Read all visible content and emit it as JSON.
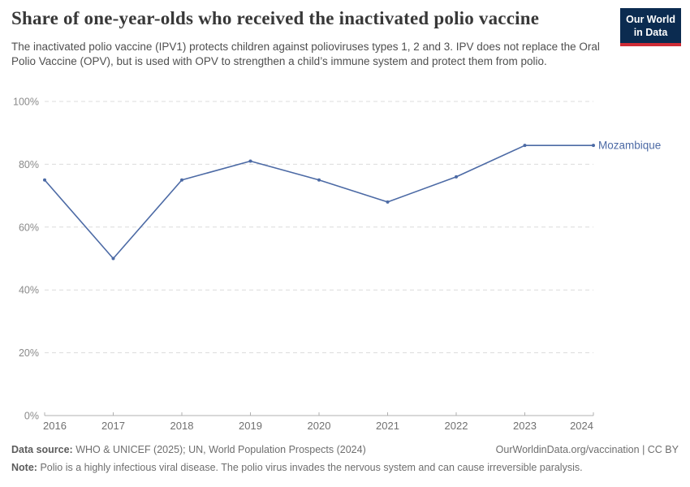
{
  "header": {
    "title": "Share of one-year-olds who received the inactivated polio vaccine",
    "subtitle": "The inactivated polio vaccine (IPV1) protects children against polioviruses types 1, 2 and 3. IPV does not replace the Oral Polio Vaccine (OPV), but is used with OPV to strengthen a child’s immune system and protect them from polio.",
    "logo": {
      "line1": "Our World",
      "line2": "in Data"
    }
  },
  "chart_data": {
    "type": "line",
    "title": "Share of one-year-olds who received the inactivated polio vaccine",
    "x": [
      2016,
      2017,
      2018,
      2019,
      2020,
      2021,
      2022,
      2023,
      2024
    ],
    "series": [
      {
        "name": "Mozambique",
        "values": [
          75,
          50,
          75,
          81,
          75,
          68,
          76,
          86,
          86
        ],
        "color": "#4c6aa5"
      }
    ],
    "ylim": [
      0,
      100
    ],
    "yticks": [
      0,
      20,
      40,
      60,
      80,
      100
    ],
    "ytick_suffix": "%",
    "xlabel": "",
    "ylabel": "",
    "grid": "horizontal-dashed",
    "legend": "end-of-line entity label"
  },
  "colors": {
    "line": "#4c6aa5",
    "logo_navy": "#0b2b50",
    "logo_red": "#cf2c36",
    "gridline": "#dcdcdc",
    "axis": "#b0b0b0",
    "y_tick_label": "#8a8a8a",
    "x_tick_label": "#707070"
  },
  "footer": {
    "source_label": "Data source:",
    "source_text": "WHO & UNICEF (2025); UN, World Population Prospects (2024)",
    "url_text": "OurWorldinData.org/vaccination | CC BY",
    "note_label": "Note:",
    "note_text": "Polio is a highly infectious viral disease. The polio virus invades the nervous system and can cause irreversible paralysis."
  }
}
